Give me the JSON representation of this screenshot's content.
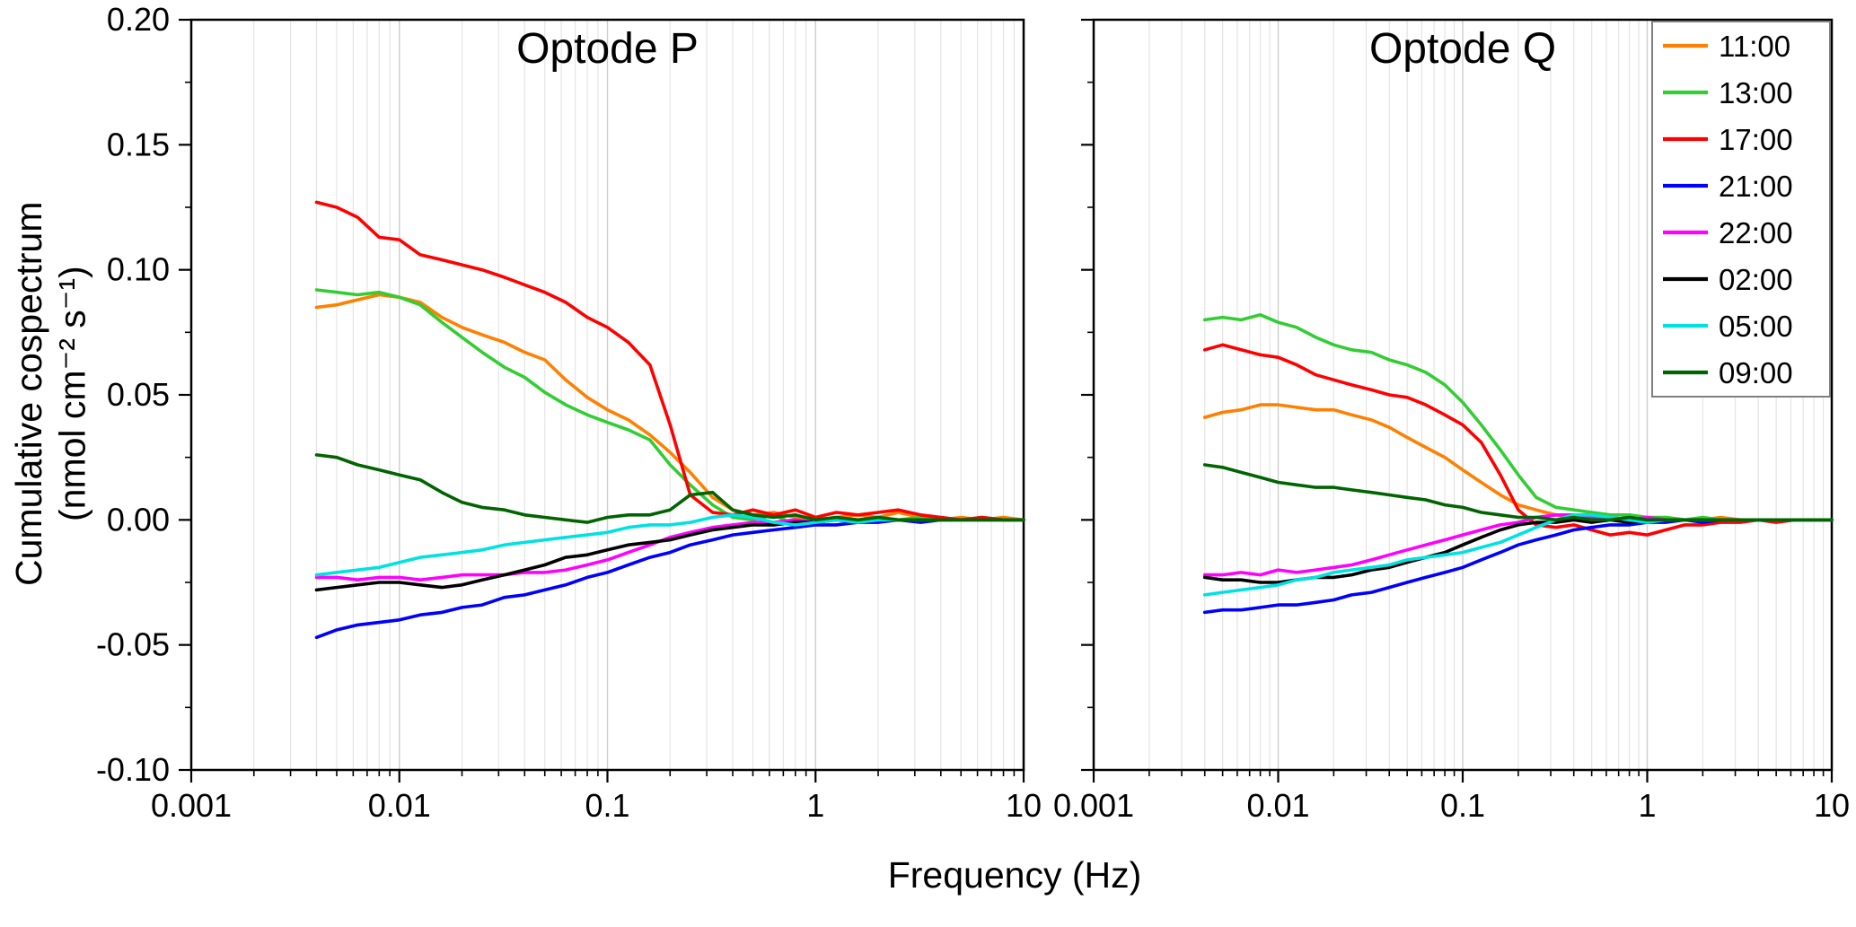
{
  "figure": {
    "ylabel_line1": "Cumulative cospectrum",
    "ylabel_line2": "(nmol cm⁻² s⁻¹)",
    "xlabel": "Frequency (Hz)",
    "background": "#ffffff",
    "frame_color": "#000000",
    "minor_grid_color": "#e4e4e4",
    "major_grid_color": "#cdcdcd",
    "legend_border_color": "#7f7f7f"
  },
  "chart_data": {
    "type": "line",
    "x_scale": "log",
    "x_range": [
      0.001,
      10
    ],
    "y_range": [
      -0.1,
      0.2
    ],
    "x_ticks": {
      "values": [
        0.001,
        0.01,
        0.1,
        1,
        10
      ],
      "labels": [
        "0.001",
        "0.01",
        "0.1",
        "1",
        "10"
      ]
    },
    "y_ticks": {
      "values": [
        0.2,
        0.15,
        0.1,
        0.05,
        0.0,
        -0.05,
        -0.1
      ],
      "labels": [
        "0.20",
        "0.15",
        "0.10",
        "0.05",
        "0.00",
        "-0.05",
        "-0.10"
      ]
    },
    "grid": "vertical-log-minor",
    "legend_position": "top-right",
    "x": [
      0.004,
      0.005,
      0.0063,
      0.008,
      0.01,
      0.0126,
      0.016,
      0.02,
      0.025,
      0.032,
      0.04,
      0.05,
      0.063,
      0.08,
      0.1,
      0.126,
      0.16,
      0.2,
      0.25,
      0.32,
      0.4,
      0.5,
      0.63,
      0.8,
      1.0,
      1.26,
      1.6,
      2.0,
      2.5,
      3.2,
      4.0,
      5.0,
      6.3,
      8.0,
      10
    ],
    "panels": [
      {
        "title": "Optode P",
        "series": [
          {
            "name": "11:00",
            "color": "#ff8000",
            "y": [
              0.085,
              0.086,
              0.088,
              0.09,
              0.089,
              0.087,
              0.081,
              0.077,
              0.074,
              0.071,
              0.067,
              0.064,
              0.056,
              0.049,
              0.044,
              0.04,
              0.034,
              0.027,
              0.019,
              0.009,
              0.004,
              0.002,
              0.003,
              0.001,
              -0.001,
              0.001,
              0.002,
              0.001,
              0.003,
              0.001,
              0.0,
              0.001,
              0.0,
              0.001,
              0.0
            ]
          },
          {
            "name": "13:00",
            "color": "#32cd32",
            "y": [
              0.092,
              0.091,
              0.09,
              0.091,
              0.089,
              0.086,
              0.079,
              0.073,
              0.067,
              0.061,
              0.057,
              0.051,
              0.046,
              0.042,
              0.039,
              0.036,
              0.032,
              0.022,
              0.014,
              0.006,
              0.001,
              0.0,
              0.002,
              -0.002,
              0.0,
              0.001,
              -0.001,
              0.001,
              0.0,
              0.001,
              0.0,
              0.0,
              0.001,
              0.0,
              0.0
            ]
          },
          {
            "name": "17:00",
            "color": "#ff0000",
            "y": [
              0.127,
              0.125,
              0.121,
              0.113,
              0.112,
              0.106,
              0.104,
              0.102,
              0.1,
              0.097,
              0.094,
              0.091,
              0.087,
              0.081,
              0.077,
              0.071,
              0.062,
              0.038,
              0.01,
              0.003,
              0.002,
              0.004,
              0.002,
              0.004,
              0.001,
              0.003,
              0.002,
              0.003,
              0.004,
              0.002,
              0.001,
              0.0,
              0.001,
              0.0,
              0.0
            ]
          },
          {
            "name": "21:00",
            "color": "#0000ff",
            "y": [
              -0.047,
              -0.044,
              -0.042,
              -0.041,
              -0.04,
              -0.038,
              -0.037,
              -0.035,
              -0.034,
              -0.031,
              -0.03,
              -0.028,
              -0.026,
              -0.023,
              -0.021,
              -0.018,
              -0.015,
              -0.013,
              -0.01,
              -0.008,
              -0.006,
              -0.005,
              -0.004,
              -0.003,
              -0.002,
              -0.002,
              -0.001,
              -0.001,
              0.0,
              -0.001,
              0.0,
              0.0,
              0.0,
              0.0,
              0.0
            ]
          },
          {
            "name": "22:00",
            "color": "#ff00ff",
            "y": [
              -0.023,
              -0.023,
              -0.024,
              -0.023,
              -0.023,
              -0.024,
              -0.023,
              -0.022,
              -0.022,
              -0.022,
              -0.021,
              -0.021,
              -0.02,
              -0.018,
              -0.016,
              -0.013,
              -0.01,
              -0.007,
              -0.005,
              -0.003,
              -0.002,
              -0.001,
              -0.001,
              0.0,
              -0.001,
              0.0,
              0.0,
              0.0,
              0.0,
              0.0,
              0.0,
              0.0,
              0.0,
              0.0,
              0.0
            ]
          },
          {
            "name": "02:00",
            "color": "#000000",
            "y": [
              -0.028,
              -0.027,
              -0.026,
              -0.025,
              -0.025,
              -0.026,
              -0.027,
              -0.026,
              -0.024,
              -0.022,
              -0.02,
              -0.018,
              -0.015,
              -0.014,
              -0.012,
              -0.01,
              -0.009,
              -0.008,
              -0.006,
              -0.004,
              -0.003,
              -0.002,
              -0.002,
              -0.001,
              -0.001,
              0.0,
              -0.001,
              0.0,
              0.0,
              0.0,
              0.0,
              0.0,
              0.0,
              0.0,
              0.0
            ]
          },
          {
            "name": "05:00",
            "color": "#00e1e1",
            "y": [
              -0.022,
              -0.021,
              -0.02,
              -0.019,
              -0.017,
              -0.015,
              -0.014,
              -0.013,
              -0.012,
              -0.01,
              -0.009,
              -0.008,
              -0.007,
              -0.006,
              -0.005,
              -0.003,
              -0.002,
              -0.002,
              -0.001,
              0.001,
              0.002,
              0.001,
              -0.001,
              -0.002,
              -0.001,
              0.0,
              -0.001,
              0.0,
              0.0,
              0.0,
              0.0,
              0.0,
              0.0,
              0.0,
              0.0
            ]
          },
          {
            "name": "09:00",
            "color": "#006400",
            "y": [
              0.026,
              0.025,
              0.022,
              0.02,
              0.018,
              0.016,
              0.011,
              0.007,
              0.005,
              0.004,
              0.002,
              0.001,
              0.0,
              -0.001,
              0.001,
              0.002,
              0.002,
              0.004,
              0.01,
              0.011,
              0.004,
              0.002,
              0.001,
              0.002,
              0.0,
              0.001,
              0.0,
              0.001,
              0.0,
              0.0,
              0.0,
              0.0,
              0.0,
              0.0,
              0.0
            ]
          }
        ]
      },
      {
        "title": "Optode Q",
        "series": [
          {
            "name": "11:00",
            "color": "#ff8000",
            "y": [
              0.041,
              0.043,
              0.044,
              0.046,
              0.046,
              0.045,
              0.044,
              0.044,
              0.042,
              0.04,
              0.037,
              0.033,
              0.029,
              0.025,
              0.02,
              0.015,
              0.01,
              0.006,
              0.004,
              0.002,
              0.001,
              0.002,
              0.0,
              0.001,
              0.0,
              0.001,
              0.0,
              0.0,
              0.001,
              0.0,
              0.0,
              0.0,
              0.0,
              0.0,
              0.0
            ]
          },
          {
            "name": "13:00",
            "color": "#32cd32",
            "y": [
              0.08,
              0.081,
              0.08,
              0.082,
              0.079,
              0.077,
              0.073,
              0.07,
              0.068,
              0.067,
              0.064,
              0.062,
              0.059,
              0.054,
              0.047,
              0.038,
              0.028,
              0.018,
              0.009,
              0.005,
              0.004,
              0.003,
              0.002,
              0.002,
              0.001,
              0.001,
              0.0,
              0.001,
              0.0,
              0.0,
              0.0,
              0.0,
              0.0,
              0.0,
              0.0
            ]
          },
          {
            "name": "17:00",
            "color": "#ff0000",
            "y": [
              0.068,
              0.07,
              0.068,
              0.066,
              0.065,
              0.062,
              0.058,
              0.056,
              0.054,
              0.052,
              0.05,
              0.049,
              0.046,
              0.042,
              0.038,
              0.031,
              0.018,
              0.004,
              -0.002,
              -0.003,
              -0.002,
              -0.004,
              -0.006,
              -0.005,
              -0.006,
              -0.004,
              -0.002,
              -0.002,
              -0.001,
              -0.001,
              0.0,
              -0.001,
              0.0,
              0.0,
              0.0
            ]
          },
          {
            "name": "21:00",
            "color": "#0000ff",
            "y": [
              -0.037,
              -0.036,
              -0.036,
              -0.035,
              -0.034,
              -0.034,
              -0.033,
              -0.032,
              -0.03,
              -0.029,
              -0.027,
              -0.025,
              -0.023,
              -0.021,
              -0.019,
              -0.016,
              -0.013,
              -0.01,
              -0.008,
              -0.006,
              -0.004,
              -0.003,
              -0.002,
              -0.002,
              -0.001,
              -0.001,
              0.0,
              -0.001,
              0.0,
              0.0,
              0.0,
              0.0,
              0.0,
              0.0,
              0.0
            ]
          },
          {
            "name": "22:00",
            "color": "#ff00ff",
            "y": [
              -0.022,
              -0.022,
              -0.021,
              -0.022,
              -0.02,
              -0.021,
              -0.02,
              -0.019,
              -0.018,
              -0.016,
              -0.014,
              -0.012,
              -0.01,
              -0.008,
              -0.006,
              -0.004,
              -0.002,
              -0.001,
              0.001,
              0.002,
              0.002,
              0.001,
              0.001,
              0.0,
              0.001,
              0.0,
              0.0,
              0.0,
              0.0,
              0.0,
              0.0,
              0.0,
              0.0,
              0.0,
              0.0
            ]
          },
          {
            "name": "02:00",
            "color": "#000000",
            "y": [
              -0.023,
              -0.024,
              -0.024,
              -0.025,
              -0.025,
              -0.024,
              -0.023,
              -0.023,
              -0.022,
              -0.02,
              -0.019,
              -0.017,
              -0.015,
              -0.013,
              -0.01,
              -0.007,
              -0.004,
              -0.002,
              -0.001,
              -0.001,
              0.0,
              -0.001,
              0.0,
              -0.001,
              0.0,
              0.0,
              0.0,
              0.0,
              0.0,
              0.0,
              0.0,
              0.0,
              0.0,
              0.0,
              0.0
            ]
          },
          {
            "name": "05:00",
            "color": "#00e1e1",
            "y": [
              -0.03,
              -0.029,
              -0.028,
              -0.027,
              -0.026,
              -0.024,
              -0.023,
              -0.021,
              -0.02,
              -0.019,
              -0.018,
              -0.016,
              -0.015,
              -0.014,
              -0.013,
              -0.011,
              -0.009,
              -0.006,
              -0.003,
              0.0,
              0.002,
              0.002,
              0.001,
              0.0,
              -0.001,
              0.0,
              0.0,
              0.0,
              0.0,
              0.0,
              0.0,
              0.0,
              0.0,
              0.0,
              0.0
            ]
          },
          {
            "name": "09:00",
            "color": "#006400",
            "y": [
              0.022,
              0.021,
              0.019,
              0.017,
              0.015,
              0.014,
              0.013,
              0.013,
              0.012,
              0.011,
              0.01,
              0.009,
              0.008,
              0.006,
              0.005,
              0.003,
              0.002,
              0.001,
              0.001,
              0.0,
              0.001,
              0.0,
              0.0,
              0.001,
              0.0,
              0.0,
              0.0,
              0.0,
              0.0,
              0.0,
              0.0,
              0.0,
              0.0,
              0.0,
              0.0
            ]
          }
        ]
      }
    ],
    "legend_entries": [
      "11:00",
      "13:00",
      "17:00",
      "21:00",
      "22:00",
      "02:00",
      "05:00",
      "09:00"
    ]
  }
}
